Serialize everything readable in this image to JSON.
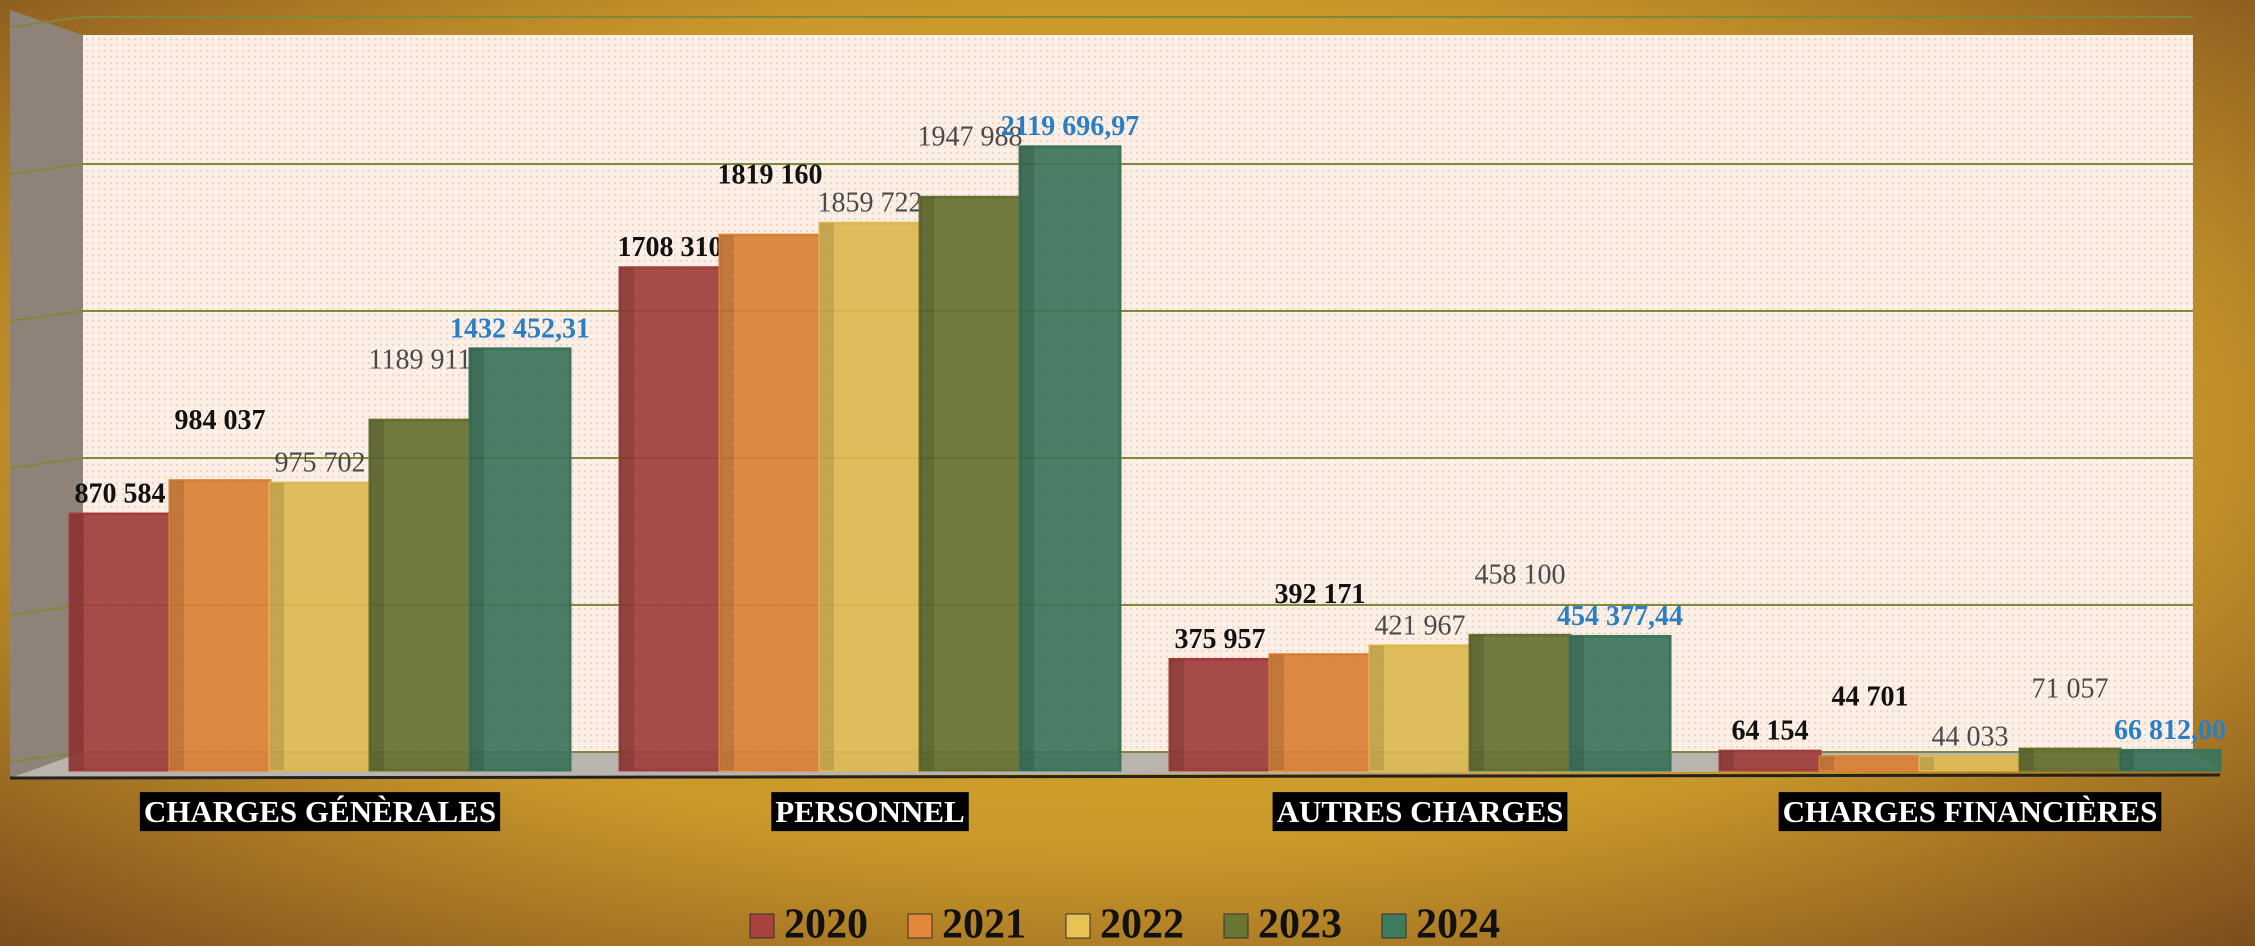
{
  "chart_data": {
    "type": "bar",
    "categories": [
      "CHARGES GÉNÈRALES",
      "PERSONNEL",
      "AUTRES CHARGES",
      "CHARGES FINANCIÈRES"
    ],
    "series": [
      {
        "name": "2020",
        "color": "#a8423f",
        "label_color": "#111111",
        "values": [
          870584,
          1708310,
          375957,
          64154
        ],
        "value_labels": [
          "870 584",
          "1708 310",
          "375 957",
          "64 154"
        ]
      },
      {
        "name": "2021",
        "color": "#e5873a",
        "label_color": "#111111",
        "values": [
          984037,
          1819160,
          392171,
          44701
        ],
        "value_labels": [
          "984 037",
          "1819 160",
          "392 171",
          "44 701"
        ]
      },
      {
        "name": "2022",
        "color": "#e9c255",
        "label_color": "#4a4a4a",
        "values": [
          975702,
          1859722,
          421967,
          44033
        ],
        "value_labels": [
          "975 702",
          "1859 722",
          "421 967",
          "44 033"
        ]
      },
      {
        "name": "2023",
        "color": "#6b7634",
        "label_color": "#4a4a4a",
        "values": [
          1189911,
          1947988,
          458100,
          71057
        ],
        "value_labels": [
          "1189 911",
          "1947 988",
          "458 100",
          "71 057"
        ]
      },
      {
        "name": "2024",
        "color": "#3f7b5f",
        "label_color": "#2a7fc4",
        "values": [
          1432452.31,
          2119696.97,
          454377.44,
          66812.0
        ],
        "value_labels": [
          "1432 452,31",
          "2119 696,97",
          "454 377,44",
          "66 812,00"
        ]
      }
    ],
    "ylim": [
      0,
      2500000
    ],
    "yticks": [
      0,
      500000,
      1000000,
      1500000,
      2000000,
      2500000
    ],
    "grid": true,
    "legend": "bottom"
  }
}
